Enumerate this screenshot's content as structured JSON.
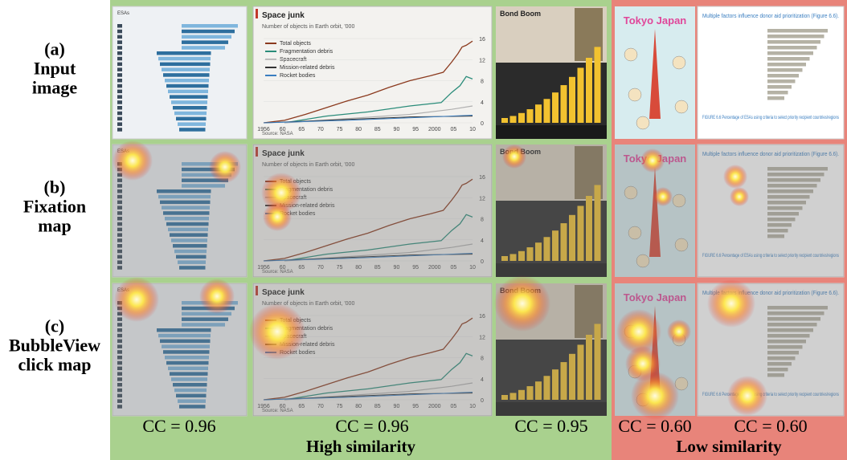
{
  "rows": [
    [
      "(a)",
      "Input",
      "image"
    ],
    [
      "(b)",
      "Fixation",
      "map"
    ],
    [
      "(c)",
      "BubbleView",
      "click map"
    ]
  ],
  "scores": [
    "CC = 0.96",
    "CC = 0.96",
    "CC = 0.95",
    "CC = 0.60",
    "CC = 0.60"
  ],
  "groups": [
    "High similarity",
    "Low similarity"
  ],
  "thumbnails": {
    "esas": {
      "title": "ESAs"
    },
    "space_junk": {
      "title": "Space junk",
      "subtitle": "Number of objects in Earth orbit, '000",
      "legend": [
        "Total objects",
        "Fragmentation debris",
        "Spacecraft",
        "Mission-related debris",
        "Rocket bodies"
      ],
      "xticks": [
        "1956",
        "60",
        "65",
        "70",
        "75",
        "80",
        "85",
        "90",
        "95",
        "2000",
        "05",
        "10"
      ],
      "yticks": [
        "16",
        "12",
        "8",
        "4",
        "0"
      ],
      "source": "Source: NASA"
    },
    "bond_boom": {
      "title": "Bond Boom"
    },
    "tokyo": {
      "title": "Tokyo Japan"
    },
    "donor": {
      "title": "Multiple factors influence donor aid prioritization (Figure 6.6).",
      "caption": "FIGURE 6.6 Percentage of ESAs using criteria to select priority recipient countries/regions"
    }
  }
}
